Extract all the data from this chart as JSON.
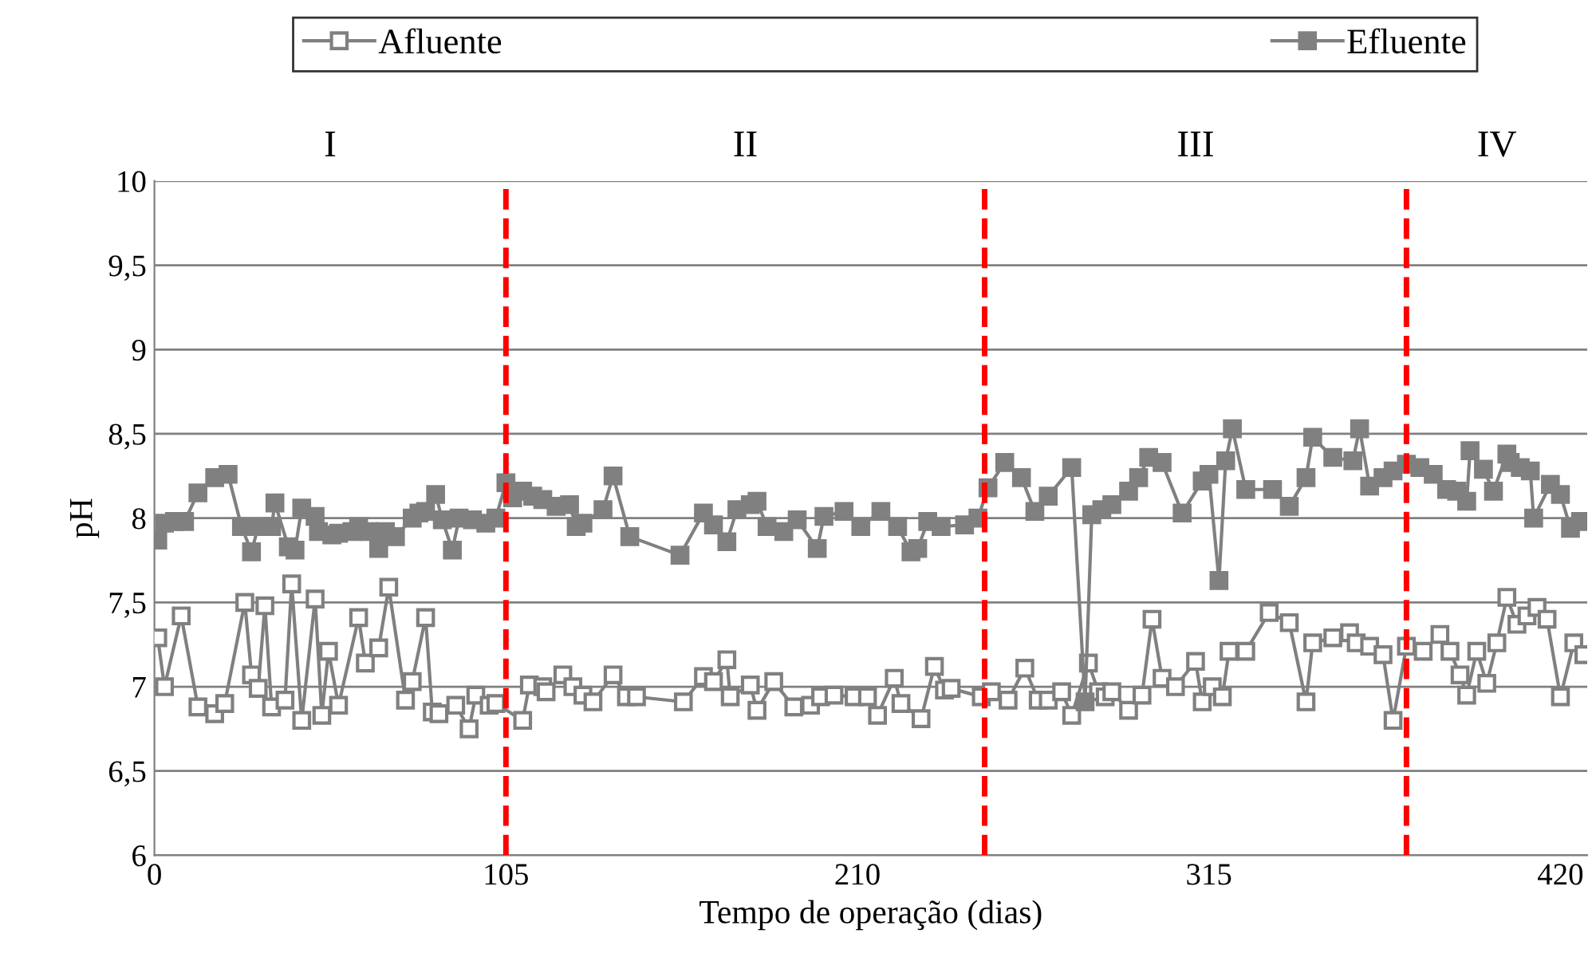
{
  "chart_data": {
    "type": "line",
    "xlabel": "Tempo de operação (dias)",
    "ylabel": "pH",
    "xlim": [
      0,
      428
    ],
    "xticks": [
      0,
      105,
      210,
      315,
      420
    ],
    "ylim": [
      6,
      10
    ],
    "yticks": [
      {
        "value": 6,
        "label": "6"
      },
      {
        "value": 6.5,
        "label": "6,5"
      },
      {
        "value": 7,
        "label": "7"
      },
      {
        "value": 7.5,
        "label": "7,5"
      },
      {
        "value": 8,
        "label": "8"
      },
      {
        "value": 8.5,
        "label": "8,5"
      },
      {
        "value": 9,
        "label": "9"
      },
      {
        "value": 9.5,
        "label": "9,5"
      },
      {
        "value": 10,
        "label": "10"
      }
    ],
    "grid": "y",
    "legend": "top",
    "marker": "square",
    "line_style": "solid",
    "ref_lines": [
      {
        "axis": "x",
        "value": 105,
        "color": "#ff0000",
        "line_style": "dashed"
      },
      {
        "axis": "x",
        "value": 248,
        "color": "#ff0000",
        "line_style": "dashed"
      },
      {
        "axis": "x",
        "value": 374,
        "color": "#ff0000",
        "line_style": "dashed"
      }
    ],
    "annotations": [
      "I",
      "II",
      "III",
      "IV"
    ],
    "series": [
      {
        "name": "Afluente",
        "color": "#808080",
        "x": [
          1,
          3,
          8,
          13,
          18,
          21,
          27,
          29,
          31,
          33,
          35,
          39,
          41,
          44,
          48,
          50,
          52,
          55,
          61,
          63,
          67,
          70,
          75,
          77,
          81,
          83,
          85,
          90,
          94,
          96,
          100,
          102,
          110,
          112,
          116,
          117,
          122,
          125,
          128,
          131,
          137,
          141,
          144,
          158,
          164,
          167,
          171,
          172,
          178,
          180,
          185,
          191,
          196,
          199,
          203,
          209,
          213,
          216,
          221,
          223,
          229,
          233,
          236,
          238,
          247,
          250,
          255,
          260,
          264,
          267,
          271,
          274,
          279,
          282,
          284,
          286,
          291,
          295,
          298,
          301,
          305,
          311,
          313,
          316,
          319,
          321,
          326,
          333,
          339,
          344,
          346,
          352,
          357,
          359,
          363,
          367,
          370,
          374,
          379,
          384,
          387,
          390,
          392,
          395,
          398,
          401,
          404,
          407,
          410,
          413,
          416,
          420,
          424,
          427
        ],
        "values": [
          7.29,
          7.0,
          7.42,
          6.88,
          6.84,
          6.9,
          7.5,
          7.07,
          6.99,
          7.48,
          6.88,
          6.92,
          7.61,
          6.8,
          7.52,
          6.83,
          7.21,
          6.89,
          7.41,
          7.14,
          7.23,
          7.59,
          6.92,
          7.03,
          7.41,
          6.85,
          6.84,
          6.89,
          6.75,
          6.95,
          6.89,
          6.9,
          6.8,
          7.01,
          7.0,
          6.97,
          7.07,
          7.0,
          6.95,
          6.91,
          7.07,
          6.94,
          6.94,
          6.91,
          7.06,
          7.03,
          7.16,
          6.94,
          7.01,
          6.86,
          7.03,
          6.88,
          6.89,
          6.94,
          6.95,
          6.94,
          6.94,
          6.83,
          7.05,
          6.9,
          6.81,
          7.12,
          6.98,
          6.99,
          6.94,
          6.97,
          6.92,
          7.11,
          6.92,
          6.92,
          6.97,
          6.83,
          7.14,
          6.97,
          6.94,
          6.97,
          6.86,
          6.95,
          7.4,
          7.05,
          7.0,
          7.15,
          6.91,
          7.0,
          6.94,
          7.21,
          7.21,
          7.44,
          7.38,
          6.91,
          7.26,
          7.29,
          7.32,
          7.26,
          7.24,
          7.19,
          6.8,
          7.24,
          7.21,
          7.31,
          7.21,
          7.07,
          6.95,
          7.21,
          7.02,
          7.26,
          7.53,
          7.37,
          7.42,
          7.47,
          7.4,
          6.94,
          7.26,
          7.19
        ]
      },
      {
        "name": "Efluente",
        "color": "#808080",
        "x": [
          1,
          3,
          6,
          9,
          13,
          18,
          22,
          26,
          29,
          31,
          35,
          36,
          40,
          42,
          44,
          48,
          49,
          53,
          55,
          59,
          61,
          64,
          67,
          69,
          72,
          77,
          79,
          81,
          84,
          86,
          89,
          91,
          95,
          99,
          102,
          105,
          107,
          110,
          113,
          116,
          120,
          124,
          126,
          128,
          134,
          137,
          142,
          157,
          164,
          167,
          171,
          174,
          178,
          180,
          183,
          188,
          192,
          198,
          200,
          206,
          211,
          217,
          222,
          226,
          228,
          231,
          235,
          242,
          246,
          249,
          254,
          259,
          263,
          267,
          274,
          278,
          280,
          283,
          286,
          291,
          294,
          297,
          301,
          307,
          313,
          315,
          318,
          320,
          322,
          326,
          334,
          339,
          344,
          346,
          352,
          358,
          360,
          363,
          367,
          370,
          374,
          378,
          382,
          386,
          389,
          392,
          393,
          397,
          400,
          404,
          405,
          408,
          411,
          412,
          417,
          420,
          423,
          426
        ],
        "values": [
          7.87,
          7.97,
          7.98,
          7.98,
          8.15,
          8.24,
          8.26,
          7.95,
          7.8,
          7.95,
          7.95,
          8.09,
          7.83,
          7.81,
          8.06,
          8.01,
          7.92,
          7.9,
          7.91,
          7.92,
          7.95,
          7.92,
          7.82,
          7.92,
          7.89,
          8.0,
          8.03,
          8.04,
          8.14,
          7.99,
          7.81,
          8.0,
          7.99,
          7.97,
          8.0,
          8.21,
          8.12,
          8.16,
          8.13,
          8.11,
          8.07,
          8.08,
          7.95,
          7.97,
          8.05,
          8.25,
          7.89,
          7.78,
          8.03,
          7.96,
          7.86,
          8.05,
          8.08,
          8.1,
          7.95,
          7.92,
          7.99,
          7.82,
          8.01,
          8.04,
          7.95,
          8.04,
          7.95,
          7.8,
          7.82,
          7.98,
          7.95,
          7.96,
          8.0,
          8.18,
          8.33,
          8.24,
          8.04,
          8.13,
          8.3,
          6.91,
          8.02,
          8.05,
          8.08,
          8.16,
          8.24,
          8.36,
          8.33,
          8.03,
          8.22,
          8.26,
          7.63,
          8.34,
          8.53,
          8.17,
          8.17,
          8.07,
          8.24,
          8.48,
          8.36,
          8.34,
          8.53,
          8.19,
          8.24,
          8.28,
          8.32,
          8.3,
          8.26,
          8.17,
          8.16,
          8.1,
          8.4,
          8.29,
          8.16,
          8.38,
          8.33,
          8.3,
          8.28,
          8.0,
          8.2,
          8.14,
          7.94,
          7.98
        ]
      }
    ]
  }
}
